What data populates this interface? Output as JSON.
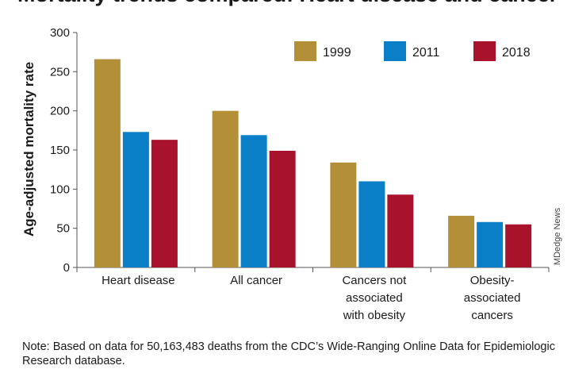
{
  "chart_data": {
    "type": "bar",
    "title": "Mortality trends compared: Heart disease and cancer",
    "ylabel": "Age-adjusted mortality rate",
    "xlabel": "",
    "ylim": [
      0,
      300
    ],
    "yticks": [
      0,
      50,
      100,
      150,
      200,
      250,
      300
    ],
    "categories": [
      [
        "Heart disease"
      ],
      [
        "All cancer"
      ],
      [
        "Cancers not",
        "associated",
        "with obesity"
      ],
      [
        "Obesity-",
        "associated",
        "cancers"
      ]
    ],
    "series": [
      {
        "name": "1999",
        "color": "#b38f38",
        "values": [
          266,
          200,
          134,
          66
        ]
      },
      {
        "name": "2011",
        "color": "#0a7fc8",
        "values": [
          173,
          169,
          110,
          58
        ]
      },
      {
        "name": "2018",
        "color": "#a8122a",
        "values": [
          163,
          149,
          93,
          55
        ]
      }
    ],
    "legend_position": "top-right",
    "grid": false,
    "credit": "MDedge News"
  },
  "note": {
    "label": "Note:",
    "text": " Based on data for 50,163,483 deaths from the CDC’s Wide-Ranging Online Data for Epidemiologic Research database."
  }
}
